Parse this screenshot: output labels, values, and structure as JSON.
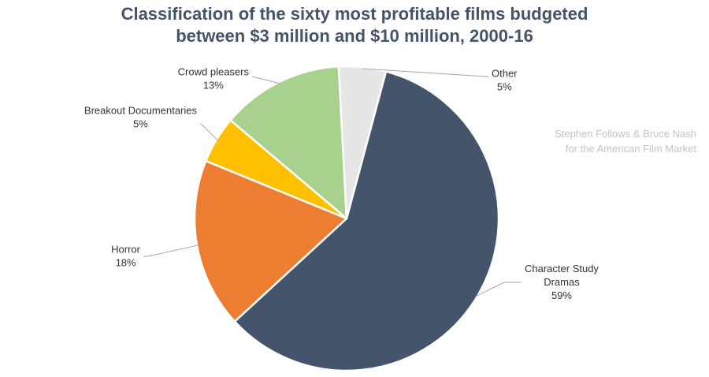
{
  "title": {
    "line1": "Classification of the sixty most profitable films budgeted",
    "line2": "between $3 million and $10 million, 2000-16"
  },
  "credit": {
    "line1": "Stephen Follows & Bruce Nash",
    "line2": "for the American Film Market"
  },
  "chart_data": {
    "type": "pie",
    "title": "Classification of the sixty most profitable films budgeted between $3 million and $10 million, 2000-16",
    "start_angle_deg": 15,
    "direction": "clockwise",
    "slices": [
      {
        "name": "Character Study Dramas",
        "label_lines": [
          "Character Study",
          "Dramas"
        ],
        "value": 59,
        "value_label": "59%",
        "color": "#44546a"
      },
      {
        "name": "Horror",
        "label_lines": [
          "Horror"
        ],
        "value": 18,
        "value_label": "18%",
        "color": "#ed7d31"
      },
      {
        "name": "Breakout Documentaries",
        "label_lines": [
          "Breakout Documentaries"
        ],
        "value": 5,
        "value_label": "5%",
        "color": "#ffc000"
      },
      {
        "name": "Crowd pleasers",
        "label_lines": [
          "Crowd pleasers"
        ],
        "value": 13,
        "value_label": "13%",
        "color": "#a9d18e"
      },
      {
        "name": "Other",
        "label_lines": [
          "Other"
        ],
        "value": 5,
        "value_label": "5%",
        "color": "#e7e6e6"
      }
    ]
  }
}
